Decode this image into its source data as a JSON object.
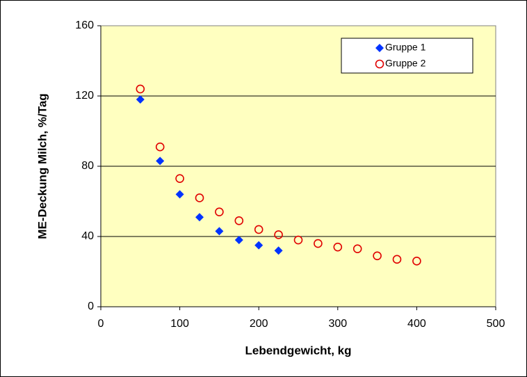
{
  "chart_data": {
    "type": "scatter",
    "xlabel": "Lebendgewicht, kg",
    "ylabel": "ME-Deckung Milch, %/Tag",
    "xlim": [
      0,
      500
    ],
    "xticks": [
      0,
      100,
      200,
      300,
      400,
      500
    ],
    "ylim": [
      0,
      160
    ],
    "yticks": [
      0,
      40,
      80,
      120,
      160
    ],
    "grid": true,
    "legend": "upper right",
    "series": [
      {
        "name": "Gruppe 1",
        "color": "#0033ff",
        "marker": "diamond",
        "x": [
          50,
          75,
          100,
          125,
          150,
          175,
          200,
          225
        ],
        "values": [
          118,
          83,
          64,
          51,
          43,
          38,
          35,
          32
        ]
      },
      {
        "name": "Gruppe 2",
        "color": "#e00000",
        "marker": "circle",
        "x": [
          50,
          75,
          100,
          125,
          150,
          175,
          200,
          225,
          250,
          275,
          300,
          325,
          350,
          375,
          400
        ],
        "values": [
          124,
          91,
          73,
          62,
          54,
          49,
          44,
          41,
          38,
          36,
          34,
          33,
          29,
          27,
          26
        ]
      }
    ]
  }
}
